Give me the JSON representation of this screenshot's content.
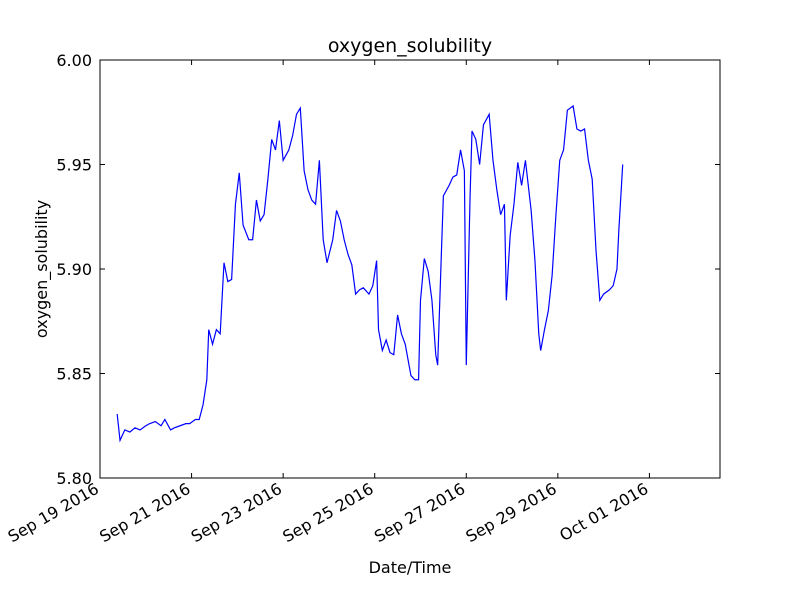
{
  "chart_data": {
    "type": "line",
    "title": "oxygen_solubility",
    "x_label": "Date/Time",
    "y_label": "oxygen_solubility",
    "xlim": [
      "2016-09-19T00:00",
      "2016-10-02T13:00"
    ],
    "xticks": [
      {
        "value": "2016-09-19",
        "label": "Sep 19 2016"
      },
      {
        "value": "2016-09-21",
        "label": "Sep 21 2016"
      },
      {
        "value": "2016-09-23",
        "label": "Sep 23 2016"
      },
      {
        "value": "2016-09-25",
        "label": "Sep 25 2016"
      },
      {
        "value": "2016-09-27",
        "label": "Sep 27 2016"
      },
      {
        "value": "2016-09-29",
        "label": "Sep 29 2016"
      },
      {
        "value": "2016-10-01",
        "label": "Oct 01 2016"
      }
    ],
    "ylim": [
      5.8,
      6.0
    ],
    "yticks": [
      {
        "value": 5.8,
        "label": "5.80"
      },
      5.85,
      {
        "value": 5.9,
        "label": "5.90"
      },
      5.95,
      {
        "value": 6.0,
        "label": "6.00"
      }
    ],
    "series": [
      {
        "name": "oxygen_solubility",
        "color": "#0000ff",
        "x": [
          "2016-09-19T09:00",
          "2016-09-19T10:30",
          "2016-09-19T13:00",
          "2016-09-19T15:40",
          "2016-09-19T18:20",
          "2016-09-19T21:00",
          "2016-09-20T00:00",
          "2016-09-20T02:00",
          "2016-09-20T05:00",
          "2016-09-20T08:00",
          "2016-09-20T10:00",
          "2016-09-20T13:00",
          "2016-09-20T15:00",
          "2016-09-20T18:00",
          "2016-09-20T21:00",
          "2016-09-20T23:00",
          "2016-09-21T02:00",
          "2016-09-21T04:00",
          "2016-09-21T06:00",
          "2016-09-21T08:00",
          "2016-09-21T09:00",
          "2016-09-21T11:00",
          "2016-09-21T13:00",
          "2016-09-21T15:00",
          "2016-09-21T17:00",
          "2016-09-21T19:00",
          "2016-09-21T21:00",
          "2016-09-21T23:00",
          "2016-09-22T01:00",
          "2016-09-22T03:00",
          "2016-09-22T06:00",
          "2016-09-22T08:00",
          "2016-09-22T10:00",
          "2016-09-22T12:00",
          "2016-09-22T14:00",
          "2016-09-22T16:00",
          "2016-09-22T18:00",
          "2016-09-22T20:00",
          "2016-09-22T22:00",
          "2016-09-23T00:00",
          "2016-09-23T03:00",
          "2016-09-23T05:00",
          "2016-09-23T07:00",
          "2016-09-23T09:00",
          "2016-09-23T11:00",
          "2016-09-23T13:00",
          "2016-09-23T15:00",
          "2016-09-23T17:00",
          "2016-09-23T19:00",
          "2016-09-23T21:00",
          "2016-09-23T23:00",
          "2016-09-24T02:00",
          "2016-09-24T04:00",
          "2016-09-24T06:00",
          "2016-09-24T08:00",
          "2016-09-24T10:00",
          "2016-09-24T12:00",
          "2016-09-24T14:00",
          "2016-09-24T16:00",
          "2016-09-24T18:00",
          "2016-09-24T21:00",
          "2016-09-24T23:00",
          "2016-09-25T01:00",
          "2016-09-25T02:00",
          "2016-09-25T04:00",
          "2016-09-25T06:00",
          "2016-09-25T08:00",
          "2016-09-25T10:00",
          "2016-09-25T12:00",
          "2016-09-25T14:00",
          "2016-09-25T16:00",
          "2016-09-25T19:00",
          "2016-09-25T21:00",
          "2016-09-25T23:00",
          "2016-09-26T00:00",
          "2016-09-26T02:00",
          "2016-09-26T04:00",
          "2016-09-26T06:00",
          "2016-09-26T08:00",
          "2016-09-26T09:00",
          "2016-09-26T11:00",
          "2016-09-26T12:00",
          "2016-09-26T15:00",
          "2016-09-26T17:00",
          "2016-09-26T19:00",
          "2016-09-26T21:00",
          "2016-09-26T23:00",
          "2016-09-27T00:00",
          "2016-09-27T02:00",
          "2016-09-27T03:00",
          "2016-09-27T05:00",
          "2016-09-27T07:00",
          "2016-09-27T09:00",
          "2016-09-27T12:00",
          "2016-09-27T14:00",
          "2016-09-27T16:00",
          "2016-09-27T18:00",
          "2016-09-27T20:00",
          "2016-09-27T21:00",
          "2016-09-27T23:00",
          "2016-09-28T01:00",
          "2016-09-28T03:00",
          "2016-09-28T05:00",
          "2016-09-28T07:00",
          "2016-09-28T10:00",
          "2016-09-28T12:00",
          "2016-09-28T14:00",
          "2016-09-28T15:00",
          "2016-09-28T17:00",
          "2016-09-28T19:00",
          "2016-09-28T21:00",
          "2016-09-28T23:00",
          "2016-09-29T01:00",
          "2016-09-29T03:00",
          "2016-09-29T05:00",
          "2016-09-29T08:00",
          "2016-09-29T10:00",
          "2016-09-29T12:00",
          "2016-09-29T14:00",
          "2016-09-29T16:00",
          "2016-09-29T18:00",
          "2016-09-29T20:00",
          "2016-09-29T22:00",
          "2016-09-30T00:00",
          "2016-09-30T03:00",
          "2016-09-30T05:00",
          "2016-09-30T07:00",
          "2016-09-30T08:00",
          "2016-09-30T10:00"
        ],
        "values": [
          5.8306,
          5.818,
          5.823,
          5.822,
          5.824,
          5.823,
          5.825,
          5.826,
          5.827,
          5.825,
          5.828,
          5.823,
          5.824,
          5.825,
          5.826,
          5.826,
          5.828,
          5.828,
          5.835,
          5.847,
          5.871,
          5.864,
          5.871,
          5.869,
          5.903,
          5.894,
          5.895,
          5.931,
          5.946,
          5.921,
          5.914,
          5.914,
          5.933,
          5.923,
          5.926,
          5.943,
          5.962,
          5.957,
          5.971,
          5.952,
          5.957,
          5.964,
          5.974,
          5.977,
          5.947,
          5.938,
          5.933,
          5.931,
          5.952,
          5.914,
          5.903,
          5.914,
          5.928,
          5.923,
          5.914,
          5.907,
          5.902,
          5.888,
          5.89,
          5.891,
          5.888,
          5.892,
          5.904,
          5.871,
          5.861,
          5.866,
          5.86,
          5.859,
          5.878,
          5.869,
          5.864,
          5.849,
          5.847,
          5.847,
          5.885,
          5.905,
          5.899,
          5.885,
          5.859,
          5.854,
          5.909,
          5.935,
          5.94,
          5.944,
          5.945,
          5.957,
          5.947,
          5.854,
          5.935,
          5.966,
          5.962,
          5.95,
          5.969,
          5.974,
          5.952,
          5.938,
          5.926,
          5.931,
          5.885,
          5.916,
          5.931,
          5.951,
          5.94,
          5.952,
          5.928,
          5.904,
          5.869,
          5.861,
          5.871,
          5.88,
          5.897,
          5.926,
          5.952,
          5.957,
          5.976,
          5.978,
          5.967,
          5.966,
          5.967,
          5.952,
          5.943,
          5.909,
          5.885,
          5.888,
          5.89,
          5.892,
          5.9,
          5.919,
          5.95
        ]
      }
    ]
  }
}
